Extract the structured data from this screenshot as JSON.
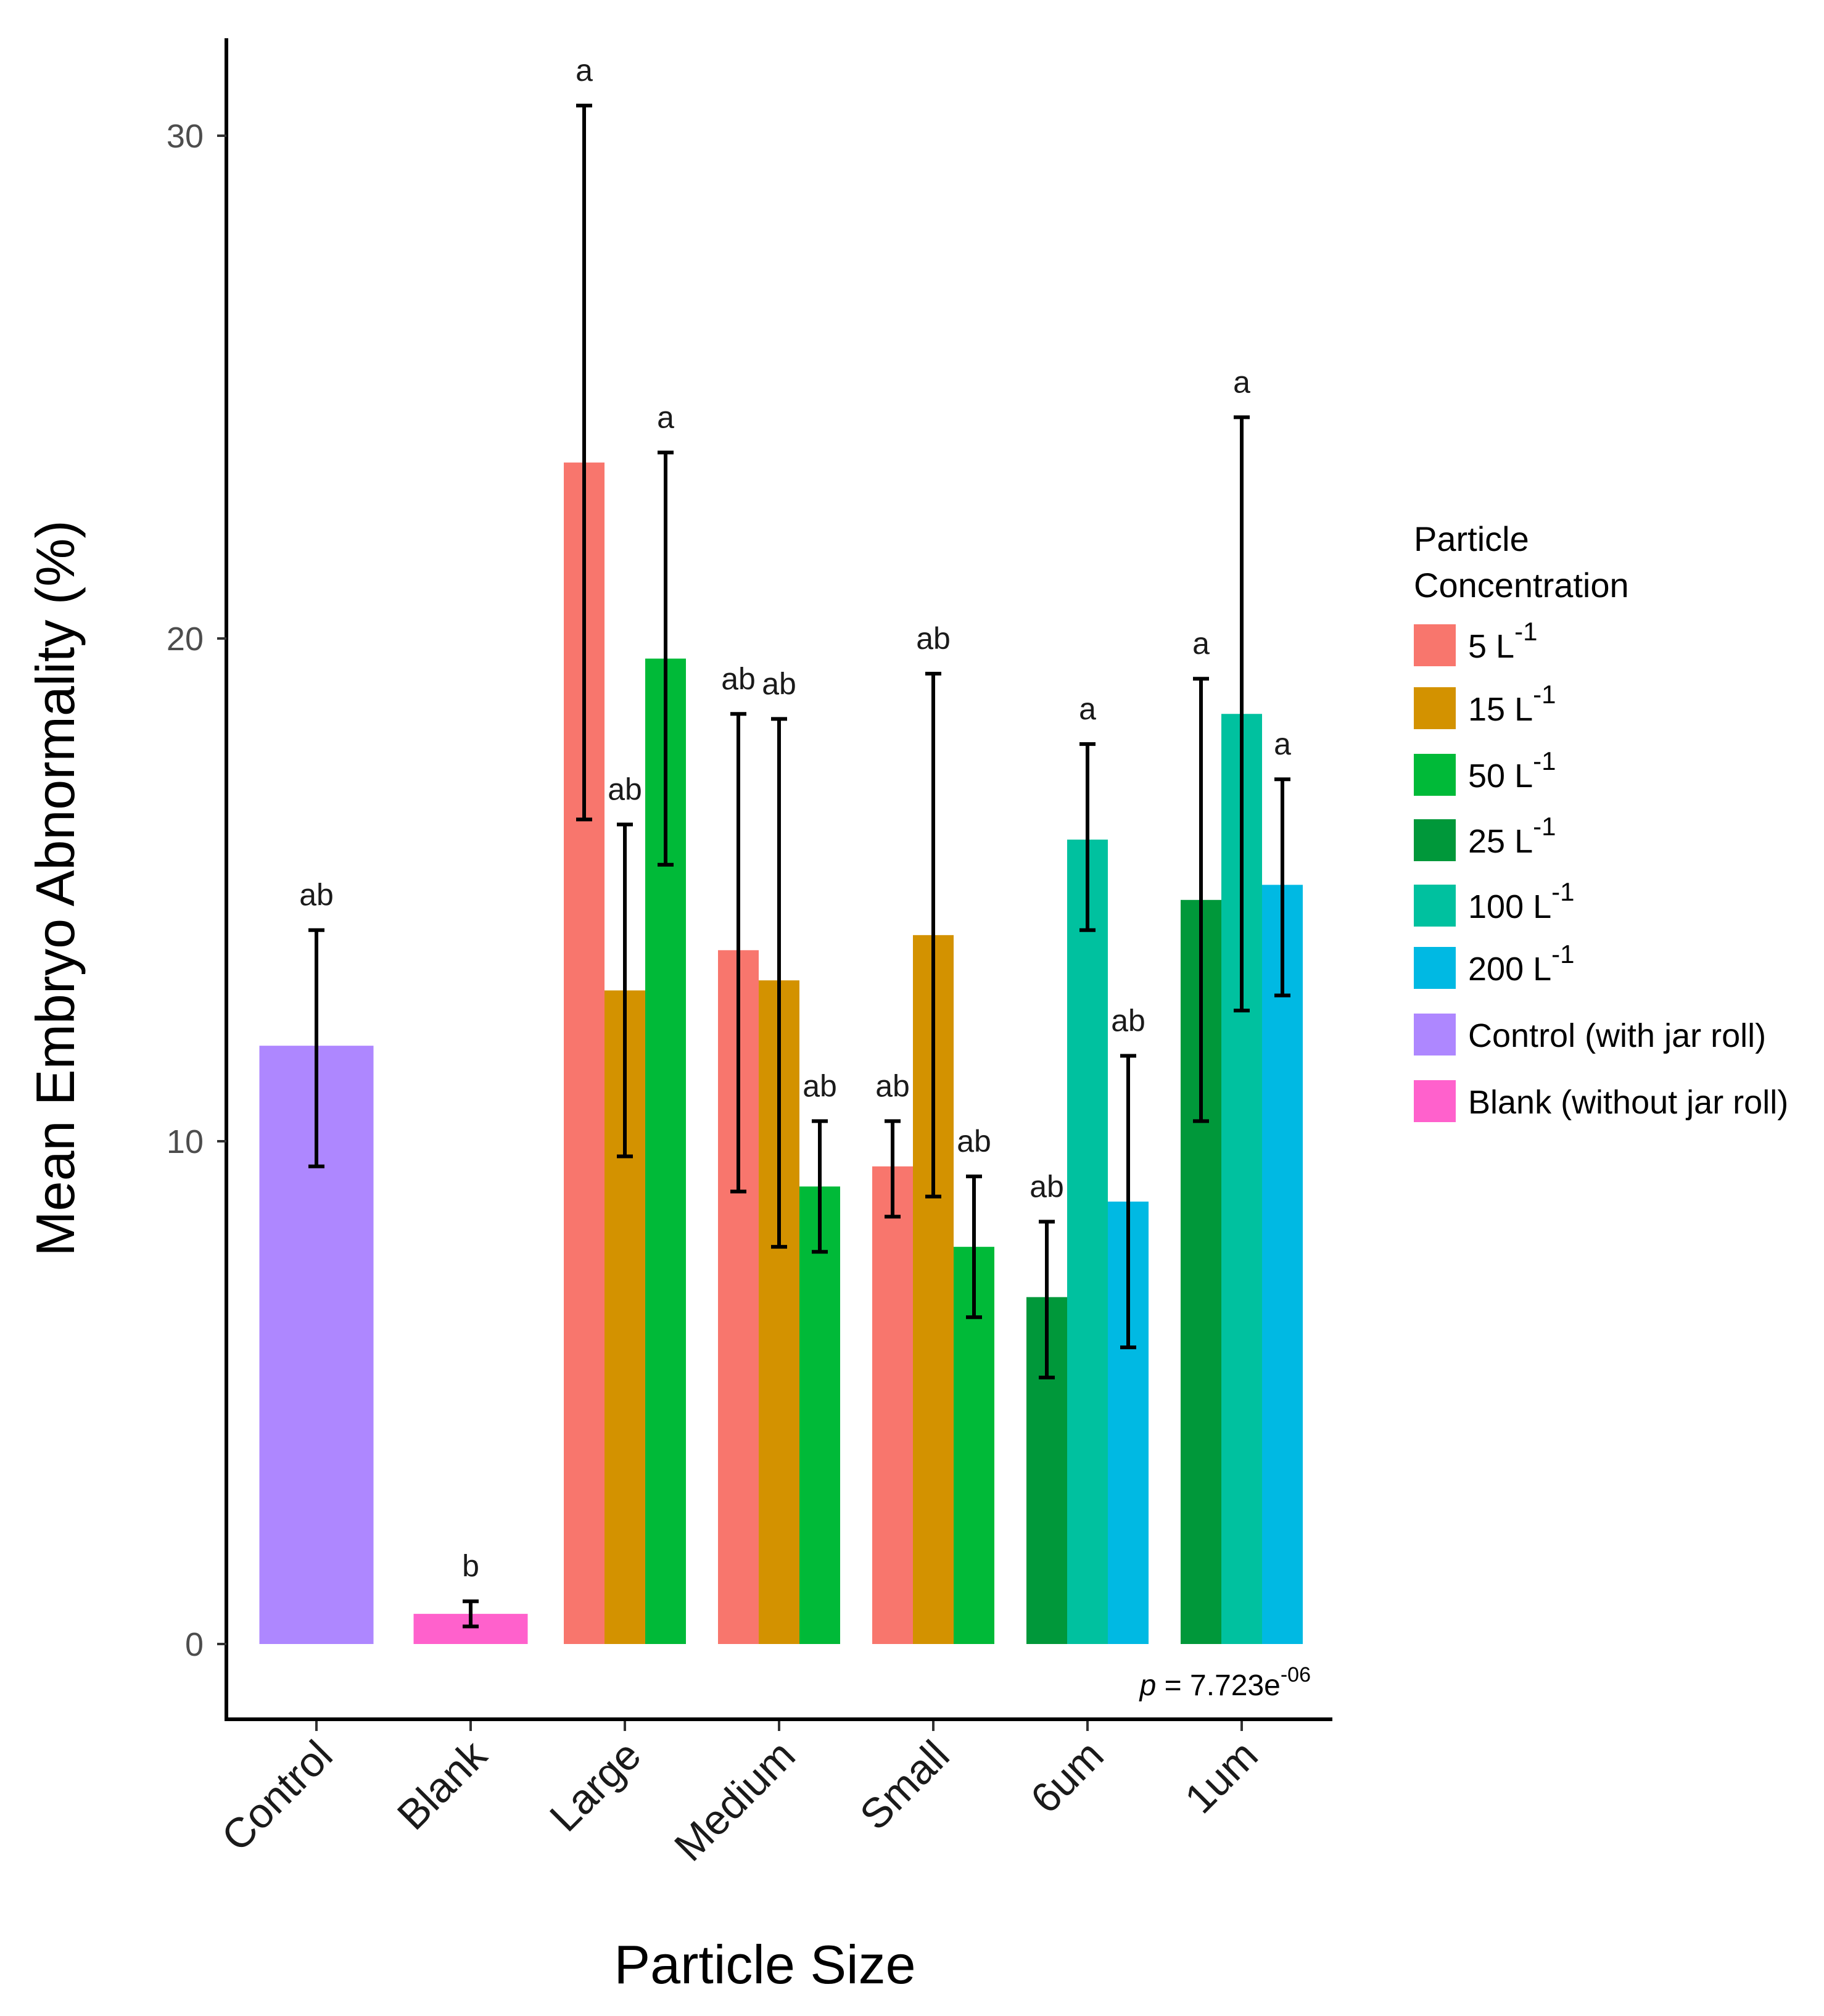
{
  "chart_data": {
    "type": "bar",
    "title": "",
    "xlabel": "Particle Size",
    "ylabel": "Mean Embryo Abnormality (%)",
    "ylim": [
      -1.5,
      32
    ],
    "yticks": [
      0,
      10,
      20,
      30
    ],
    "categories": [
      "Control",
      "Blank",
      "Large",
      "Medium",
      "Small",
      "6um",
      "1um"
    ],
    "legend": {
      "title_line1": "Particle",
      "title_line2": "Concentration",
      "position": "right",
      "entries": [
        {
          "key": "c5",
          "label": "5 L",
          "sup": "-1",
          "color": "#F8766D"
        },
        {
          "key": "c15",
          "label": "15 L",
          "sup": "-1",
          "color": "#D39200"
        },
        {
          "key": "c50",
          "label": "50 L",
          "sup": "-1",
          "color": "#00BA38"
        },
        {
          "key": "c25",
          "label": "25 L",
          "sup": "-1",
          "color": "#00983A"
        },
        {
          "key": "c100",
          "label": "100 L",
          "sup": "-1",
          "color": "#00C19F"
        },
        {
          "key": "c200",
          "label": "200 L",
          "sup": "-1",
          "color": "#00B9E3"
        },
        {
          "key": "control",
          "label": "Control (with jar roll)",
          "sup": "",
          "color": "#AE87FF"
        },
        {
          "key": "blank",
          "label": "Blank (without jar roll)",
          "sup": "",
          "color": "#FF61CC"
        }
      ]
    },
    "bars": [
      {
        "category": "Control",
        "series": "control",
        "value": 11.9,
        "err_low": 9.5,
        "err_high": 14.2,
        "sig": "ab"
      },
      {
        "category": "Blank",
        "series": "blank",
        "value": 0.6,
        "err_low": 0.35,
        "err_high": 0.85,
        "sig": "b"
      },
      {
        "category": "Large",
        "series": "c5",
        "value": 23.5,
        "err_low": 16.4,
        "err_high": 30.6,
        "sig": "a"
      },
      {
        "category": "Large",
        "series": "c15",
        "value": 13.0,
        "err_low": 9.7,
        "err_high": 16.3,
        "sig": "ab"
      },
      {
        "category": "Large",
        "series": "c50",
        "value": 19.6,
        "err_low": 15.5,
        "err_high": 23.7,
        "sig": "a"
      },
      {
        "category": "Medium",
        "series": "c5",
        "value": 13.8,
        "err_low": 9.0,
        "err_high": 18.5,
        "sig": "ab"
      },
      {
        "category": "Medium",
        "series": "c15",
        "value": 13.2,
        "err_low": 7.9,
        "err_high": 18.4,
        "sig": "ab"
      },
      {
        "category": "Medium",
        "series": "c50",
        "value": 9.1,
        "err_low": 7.8,
        "err_high": 10.4,
        "sig": "ab"
      },
      {
        "category": "Small",
        "series": "c5",
        "value": 9.5,
        "err_low": 8.5,
        "err_high": 10.4,
        "sig": "ab"
      },
      {
        "category": "Small",
        "series": "c15",
        "value": 14.1,
        "err_low": 8.9,
        "err_high": 19.3,
        "sig": "ab"
      },
      {
        "category": "Small",
        "series": "c50",
        "value": 7.9,
        "err_low": 6.5,
        "err_high": 9.3,
        "sig": "ab"
      },
      {
        "category": "6um",
        "series": "c25",
        "value": 6.9,
        "err_low": 5.3,
        "err_high": 8.4,
        "sig": "ab"
      },
      {
        "category": "6um",
        "series": "c100",
        "value": 16.0,
        "err_low": 14.2,
        "err_high": 17.9,
        "sig": "a"
      },
      {
        "category": "6um",
        "series": "c200",
        "value": 8.8,
        "err_low": 5.9,
        "err_high": 11.7,
        "sig": "ab"
      },
      {
        "category": "1um",
        "series": "c25",
        "value": 14.8,
        "err_low": 10.4,
        "err_high": 19.2,
        "sig": "a"
      },
      {
        "category": "1um",
        "series": "c100",
        "value": 18.5,
        "err_low": 12.6,
        "err_high": 24.4,
        "sig": "a"
      },
      {
        "category": "1um",
        "series": "c200",
        "value": 15.1,
        "err_low": 12.9,
        "err_high": 17.2,
        "sig": "a"
      }
    ],
    "annotation": {
      "p_symbol": "p",
      "p_text": " = 7.723e",
      "p_exp": "-06"
    }
  }
}
